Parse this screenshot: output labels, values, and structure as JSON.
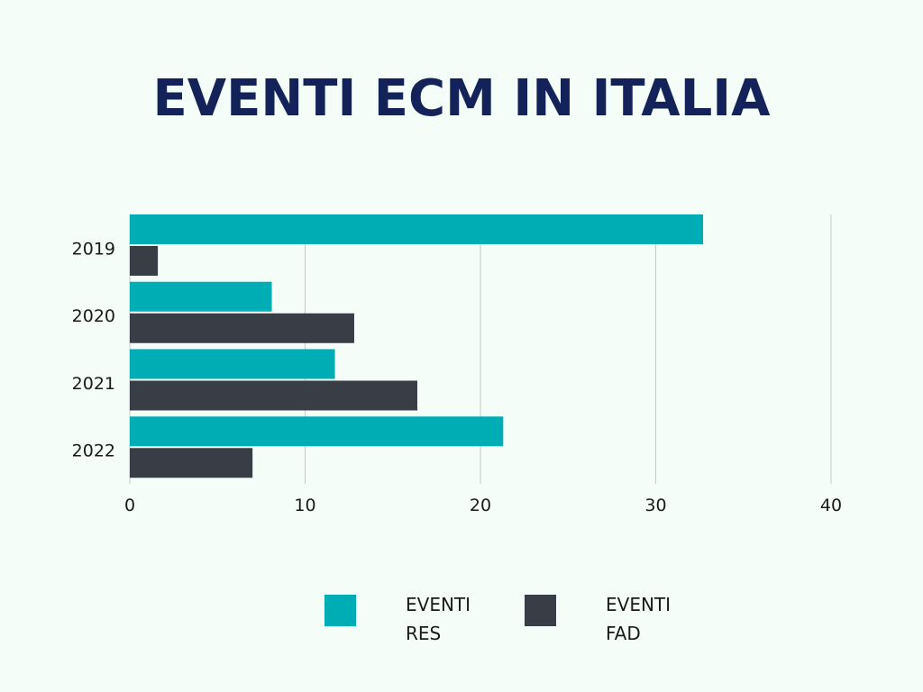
{
  "chart_data": {
    "type": "bar",
    "orientation": "horizontal",
    "title": "EVENTI ECM IN ITALIA",
    "categories": [
      "2019",
      "2020",
      "2021",
      "2022"
    ],
    "series": [
      {
        "name": "EVENTI RES",
        "values": [
          32.7,
          8.1,
          11.7,
          21.3
        ],
        "color": "#00adb5"
      },
      {
        "name": "EVENTI FAD",
        "values": [
          1.6,
          12.8,
          16.4,
          7.0
        ],
        "color": "#393e46"
      }
    ],
    "xlim": [
      0,
      40
    ],
    "xticks": [
      0,
      10,
      20,
      30,
      40
    ],
    "grid": true,
    "legend_position": "bottom"
  }
}
